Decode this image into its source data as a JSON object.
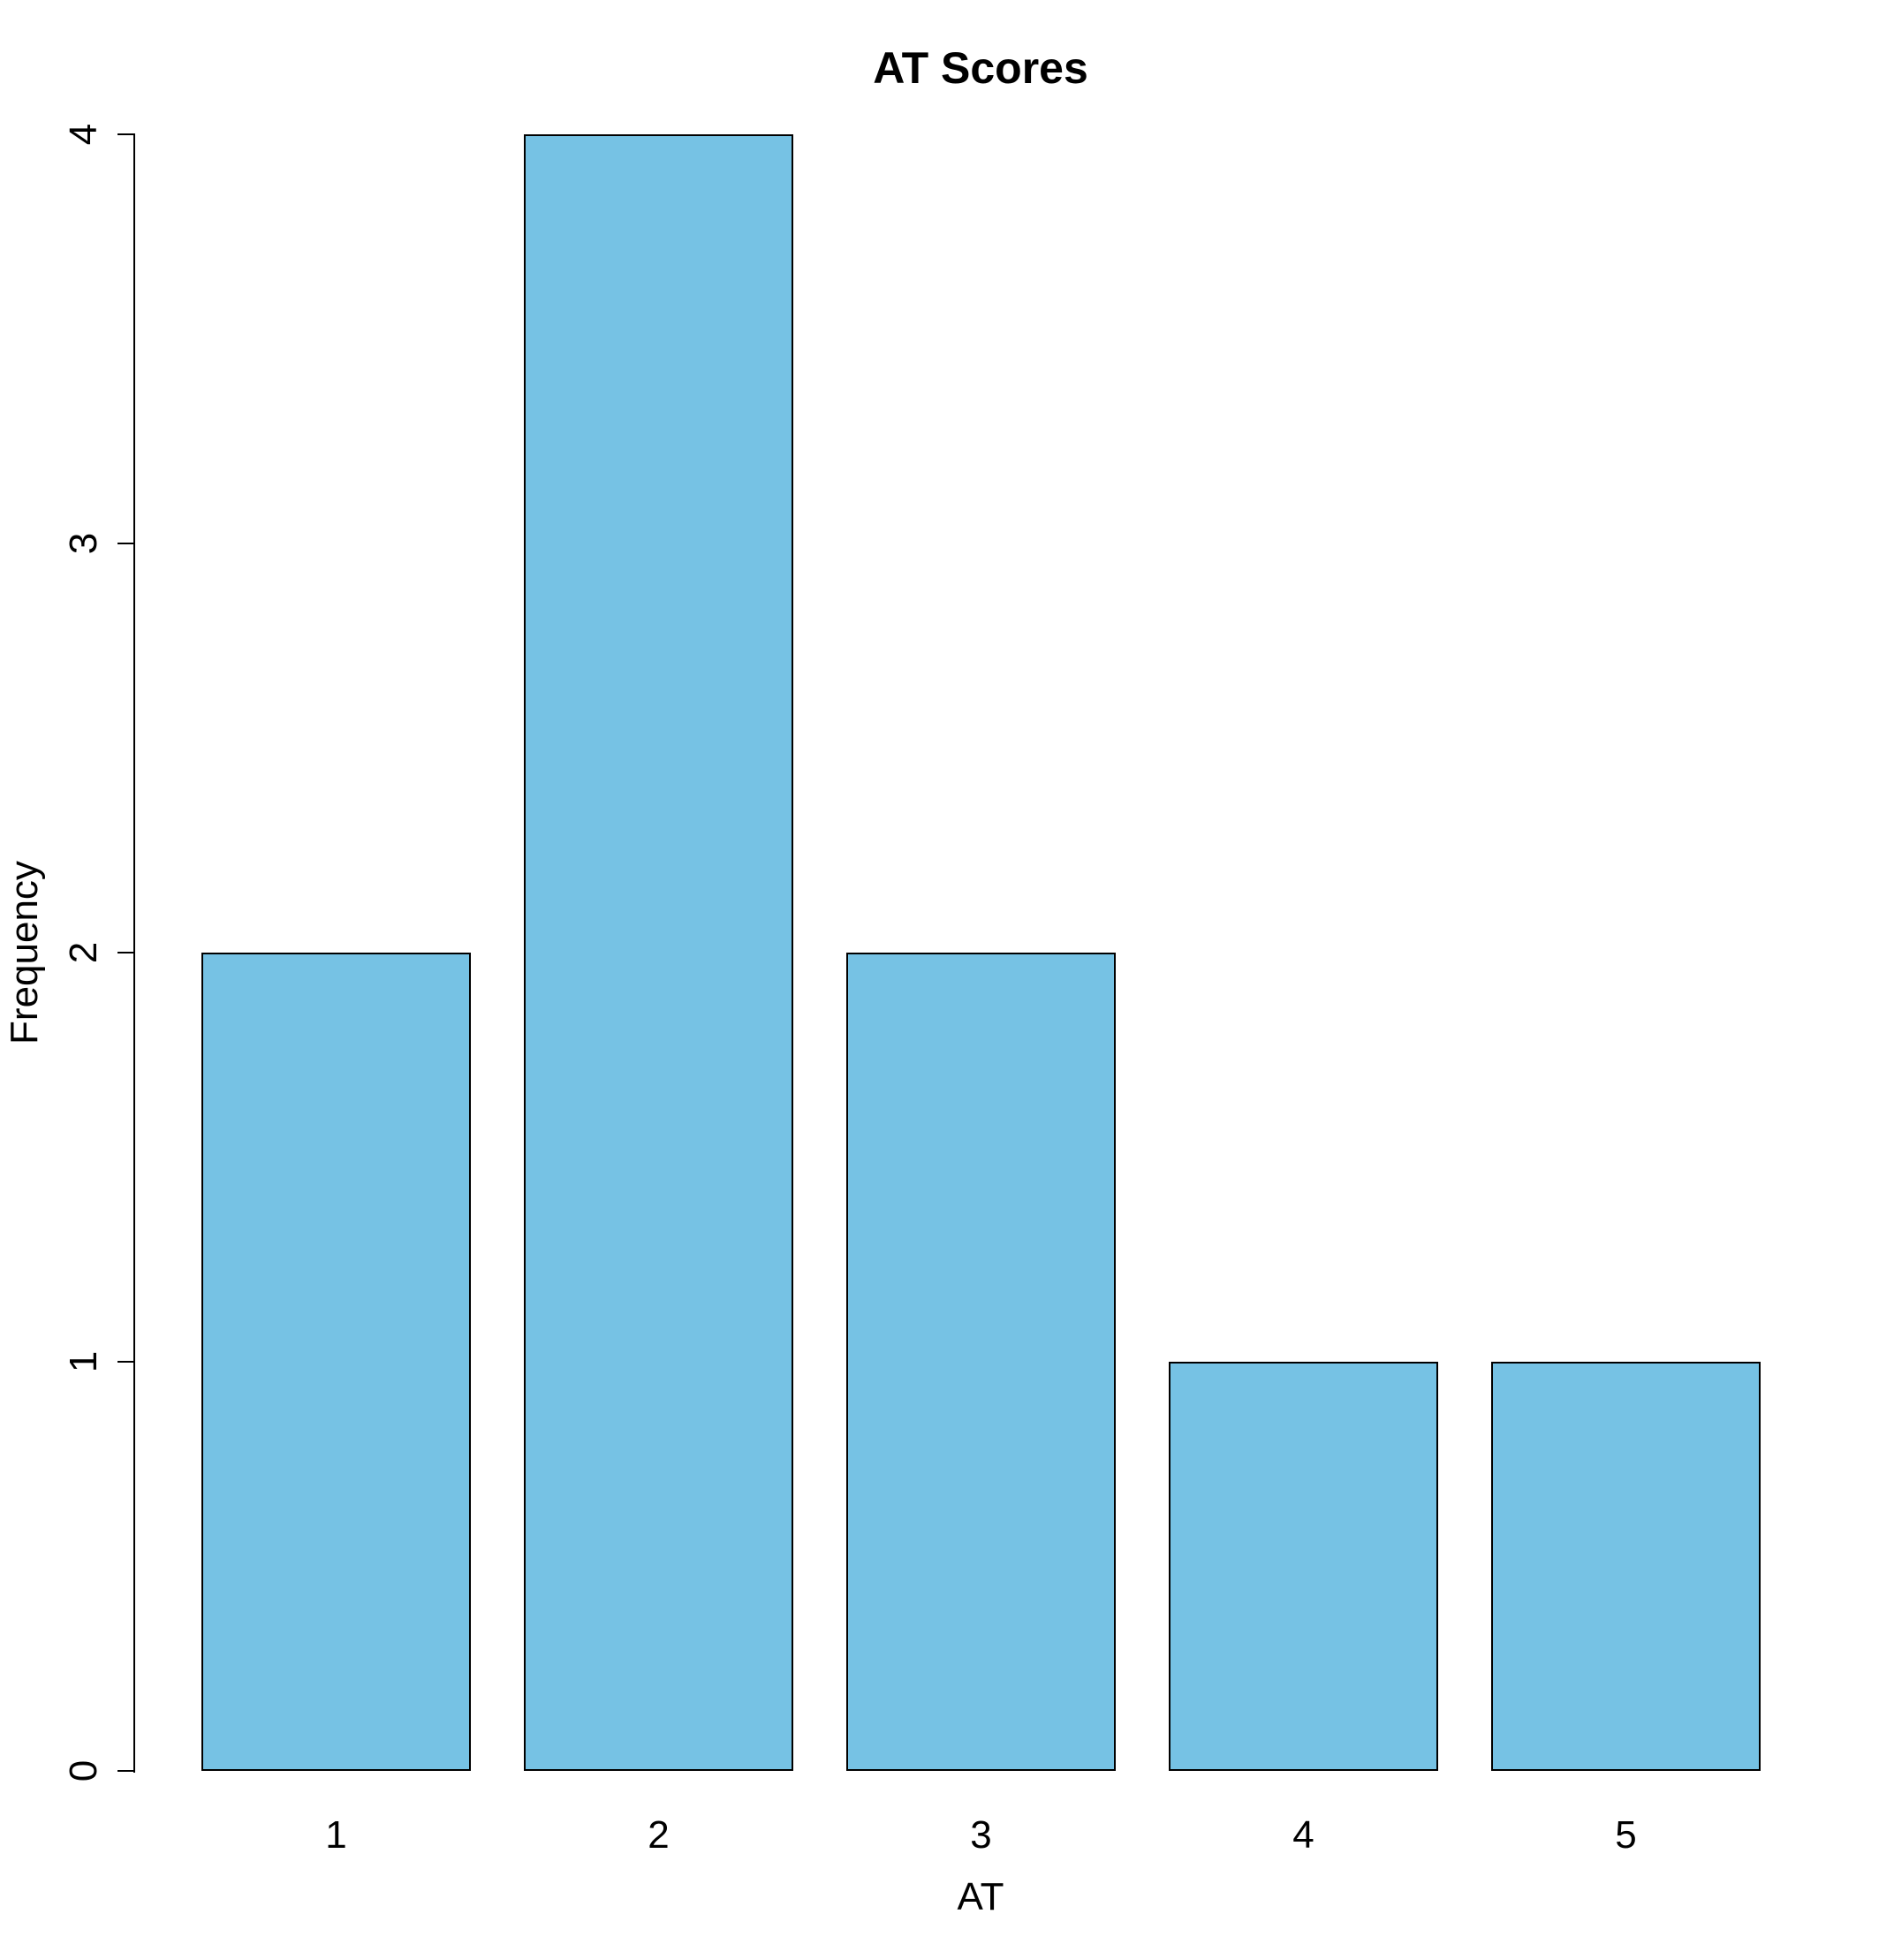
{
  "chart_data": {
    "type": "bar",
    "title": "AT Scores",
    "xlabel": "AT",
    "ylabel": "Frequency",
    "categories": [
      "1",
      "2",
      "3",
      "4",
      "5"
    ],
    "values": [
      2,
      4,
      2,
      1,
      1
    ],
    "yticks": [
      "0",
      "1",
      "2",
      "3",
      "4"
    ],
    "ylim": [
      0,
      4
    ],
    "grid": "off",
    "legend": "none",
    "bar_fill_color": "#76C2E4",
    "bar_border_color": "#000000",
    "axis_color": "#000000",
    "background_color": "#ffffff"
  }
}
